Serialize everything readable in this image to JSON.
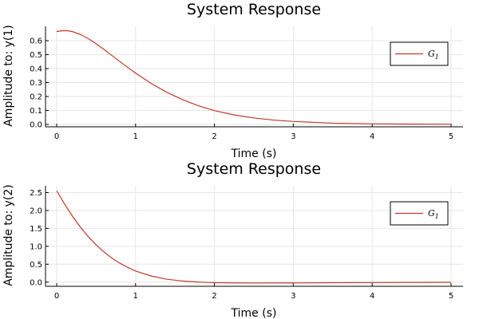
{
  "chart_data": [
    {
      "type": "line",
      "title": "System Response",
      "xlabel": "Time (s)",
      "ylabel": "Amplitude to: y(1)",
      "xlim": [
        0,
        5
      ],
      "ylim": [
        0,
        0.68
      ],
      "xticks": [
        0,
        1,
        2,
        3,
        4,
        5
      ],
      "yticks": [
        0.0,
        0.1,
        0.2,
        0.3,
        0.4,
        0.5,
        0.6
      ],
      "ytick_labels": [
        "0.0",
        "0.1",
        "0.2",
        "0.3",
        "0.4",
        "0.5",
        "0.6"
      ],
      "grid": true,
      "legend_position": "top-right",
      "series": [
        {
          "name": "G1",
          "color": "#c0392b",
          "x": [
            0,
            0.05,
            0.1,
            0.15,
            0.2,
            0.3,
            0.4,
            0.5,
            0.6,
            0.7,
            0.8,
            0.9,
            1.0,
            1.2,
            1.4,
            1.6,
            1.8,
            2.0,
            2.25,
            2.5,
            2.75,
            3.0,
            3.5,
            4.0,
            4.5,
            5.0
          ],
          "y": [
            0.665,
            0.67,
            0.672,
            0.67,
            0.665,
            0.645,
            0.615,
            0.578,
            0.537,
            0.494,
            0.451,
            0.409,
            0.368,
            0.293,
            0.229,
            0.176,
            0.133,
            0.099,
            0.068,
            0.046,
            0.031,
            0.021,
            0.009,
            0.004,
            0.002,
            0.001
          ]
        }
      ]
    },
    {
      "type": "line",
      "title": "System Response",
      "xlabel": "Time (s)",
      "ylabel": "Amplitude to: y(2)",
      "xlim": [
        0,
        5
      ],
      "ylim": [
        -0.05,
        2.6
      ],
      "xticks": [
        0,
        1,
        2,
        3,
        4,
        5
      ],
      "yticks": [
        0.0,
        0.5,
        1.0,
        1.5,
        2.0,
        2.5
      ],
      "ytick_labels": [
        "0.0",
        "0.5",
        "1.0",
        "1.5",
        "2.0",
        "2.5"
      ],
      "grid": true,
      "legend_position": "top-right",
      "series": [
        {
          "name": "G1",
          "color": "#c0392b",
          "x": [
            0,
            0.1,
            0.2,
            0.3,
            0.4,
            0.5,
            0.6,
            0.7,
            0.8,
            0.9,
            1.0,
            1.2,
            1.4,
            1.6,
            1.8,
            2.0,
            2.25,
            2.5,
            3.0,
            3.5,
            4.0,
            4.5,
            5.0
          ],
          "y": [
            2.55,
            2.18,
            1.84,
            1.54,
            1.27,
            1.04,
            0.84,
            0.67,
            0.53,
            0.41,
            0.31,
            0.17,
            0.08,
            0.03,
            0.0,
            -0.015,
            -0.022,
            -0.024,
            -0.022,
            -0.017,
            -0.012,
            -0.008,
            -0.005
          ]
        }
      ]
    }
  ]
}
